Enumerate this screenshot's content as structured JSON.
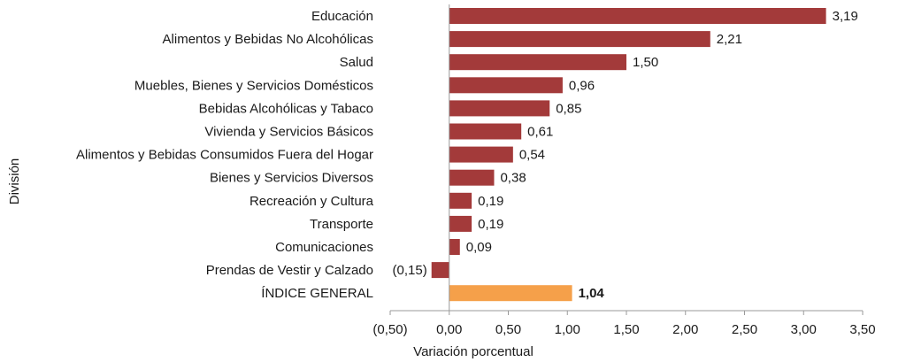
{
  "chart_data": {
    "type": "bar",
    "orientation": "horizontal",
    "categories": [
      "Educación",
      "Alimentos y Bebidas No Alcohólicas",
      "Salud",
      "Muebles, Bienes y Servicios Domésticos",
      "Bebidas Alcohólicas y Tabaco",
      "Vivienda y Servicios Básicos",
      "Alimentos y Bebidas Consumidos Fuera del Hogar",
      "Bienes y Servicios Diversos",
      "Recreación y Cultura",
      "Transporte",
      "Comunicaciones",
      "Prendas de Vestir y Calzado",
      "ÍNDICE GENERAL"
    ],
    "values": [
      3.19,
      2.21,
      1.5,
      0.96,
      0.85,
      0.61,
      0.54,
      0.38,
      0.19,
      0.19,
      0.09,
      -0.15,
      1.04
    ],
    "value_labels": [
      "3,19",
      "2,21",
      "1,50",
      "0,96",
      "0,85",
      "0,61",
      "0,54",
      "0,38",
      "0,19",
      "0,19",
      "0,09",
      "(0,15)",
      "1,04"
    ],
    "highlight_index": 12,
    "xlim": [
      -0.5,
      3.5
    ],
    "xticks": [
      -0.5,
      0,
      0.5,
      1,
      1.5,
      2,
      2.5,
      3,
      3.5
    ],
    "xtick_labels": [
      "(0,50)",
      "0,00",
      "0,50",
      "1,00",
      "1,50",
      "2,00",
      "2,50",
      "3,00",
      "3,50"
    ],
    "xlabel": "Variación porcentual",
    "ylabel": "División",
    "grid": false,
    "colors": {
      "bar": "#a33a3a",
      "highlight": "#f5a04a"
    }
  }
}
